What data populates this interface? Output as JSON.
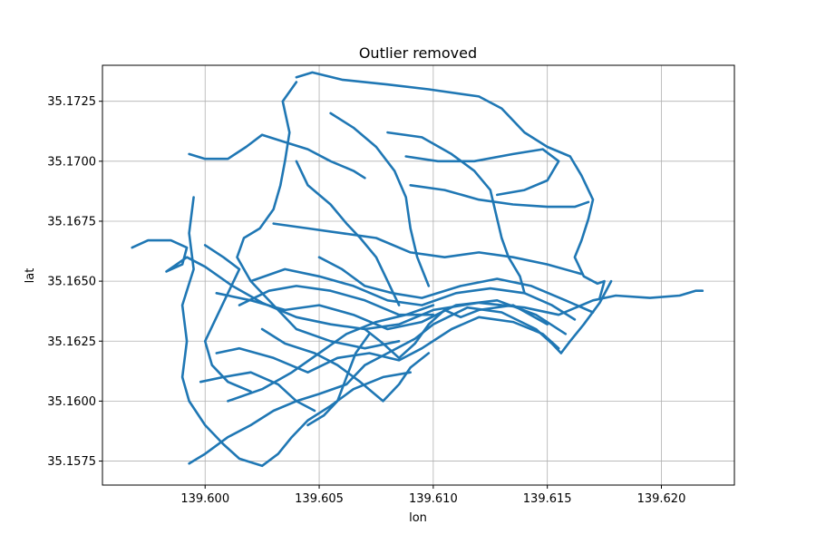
{
  "chart_data": {
    "type": "line",
    "title": "Outlier removed",
    "xlabel": "lon",
    "ylabel": "lat",
    "xlim": [
      139.5955,
      139.6232
    ],
    "ylim": [
      35.1565,
      35.174
    ],
    "grid": true,
    "series_color": "#1f77b4",
    "x_ticks": [
      {
        "value": 139.6,
        "label": "139.600"
      },
      {
        "value": 139.605,
        "label": "139.605"
      },
      {
        "value": 139.61,
        "label": "139.610"
      },
      {
        "value": 139.615,
        "label": "139.615"
      },
      {
        "value": 139.62,
        "label": "139.620"
      }
    ],
    "y_ticks": [
      {
        "value": 35.1575,
        "label": "35.1575"
      },
      {
        "value": 35.16,
        "label": "35.1600"
      },
      {
        "value": 35.1625,
        "label": "35.1625"
      },
      {
        "value": 35.165,
        "label": "35.1650"
      },
      {
        "value": 35.1675,
        "label": "35.1675"
      },
      {
        "value": 35.17,
        "label": "35.1700"
      },
      {
        "value": 35.1725,
        "label": "35.1725"
      }
    ],
    "tracks": [
      [
        [
          139.604,
          35.1735
        ],
        [
          139.6047,
          35.1737
        ],
        [
          139.606,
          35.1734
        ],
        [
          139.608,
          35.1732
        ],
        [
          139.6098,
          35.173
        ],
        [
          139.612,
          35.1727
        ],
        [
          139.613,
          35.1722
        ],
        [
          139.614,
          35.1712
        ],
        [
          139.615,
          35.1706
        ],
        [
          139.616,
          35.1702
        ],
        [
          139.6165,
          35.1694
        ],
        [
          139.617,
          35.1684
        ],
        [
          139.6168,
          35.1676
        ],
        [
          139.6165,
          35.1667
        ],
        [
          139.6162,
          35.166
        ],
        [
          139.6166,
          35.1652
        ],
        [
          139.6172,
          35.1649
        ],
        [
          139.6175,
          35.165
        ],
        [
          139.6173,
          35.1643
        ]
      ],
      [
        [
          139.604,
          35.1733
        ],
        [
          139.6034,
          35.1725
        ],
        [
          139.6037,
          35.1712
        ],
        [
          139.6035,
          35.17
        ],
        [
          139.6033,
          35.169
        ],
        [
          139.603,
          35.168
        ],
        [
          139.6024,
          35.1672
        ],
        [
          139.6017,
          35.1668
        ],
        [
          139.6014,
          35.166
        ],
        [
          139.602,
          35.165
        ],
        [
          139.603,
          35.164
        ],
        [
          139.604,
          35.163
        ],
        [
          139.6055,
          35.1625
        ],
        [
          139.607,
          35.1622
        ],
        [
          139.6085,
          35.1625
        ]
      ],
      [
        [
          139.5968,
          35.1664
        ],
        [
          139.5975,
          35.1667
        ],
        [
          139.5985,
          35.1667
        ],
        [
          139.5992,
          35.1664
        ],
        [
          139.599,
          35.1657
        ],
        [
          139.5983,
          35.1654
        ],
        [
          139.5992,
          35.166
        ],
        [
          139.6,
          35.1656
        ],
        [
          139.6012,
          35.1648
        ],
        [
          139.6025,
          35.1641
        ],
        [
          139.604,
          35.1635
        ],
        [
          139.6055,
          35.1632
        ],
        [
          139.607,
          35.163
        ],
        [
          139.6085,
          35.1632
        ],
        [
          139.61,
          35.1638
        ],
        [
          139.612,
          35.1641
        ],
        [
          139.614,
          35.1639
        ],
        [
          139.6155,
          35.1636
        ],
        [
          139.617,
          35.1642
        ],
        [
          139.618,
          35.1644
        ],
        [
          139.6195,
          35.1643
        ],
        [
          139.6208,
          35.1644
        ],
        [
          139.6215,
          35.1646
        ],
        [
          139.6218,
          35.1646
        ]
      ],
      [
        [
          139.5993,
          35.1703
        ],
        [
          139.6,
          35.1701
        ],
        [
          139.601,
          35.1701
        ],
        [
          139.6018,
          35.1706
        ],
        [
          139.6025,
          35.1711
        ],
        [
          139.6035,
          35.1708
        ],
        [
          139.6045,
          35.1705
        ],
        [
          139.6055,
          35.17
        ],
        [
          139.6065,
          35.1696
        ],
        [
          139.607,
          35.1693
        ]
      ],
      [
        [
          139.5995,
          35.1685
        ],
        [
          139.5993,
          35.167
        ],
        [
          139.5995,
          35.1655
        ],
        [
          139.599,
          35.164
        ],
        [
          139.5992,
          35.1625
        ],
        [
          139.599,
          35.161
        ],
        [
          139.5993,
          35.16
        ],
        [
          139.6,
          35.159
        ],
        [
          139.6008,
          35.1582
        ],
        [
          139.6015,
          35.1576
        ],
        [
          139.6025,
          35.1573
        ],
        [
          139.6032,
          35.1578
        ],
        [
          139.6038,
          35.1585
        ],
        [
          139.6045,
          35.1592
        ],
        [
          139.6055,
          35.1598
        ],
        [
          139.6065,
          35.1605
        ],
        [
          139.6078,
          35.161
        ],
        [
          139.609,
          35.1612
        ]
      ],
      [
        [
          139.5993,
          35.1574
        ],
        [
          139.6,
          35.1578
        ],
        [
          139.601,
          35.1585
        ],
        [
          139.602,
          35.159
        ],
        [
          139.603,
          35.1596
        ],
        [
          139.604,
          35.16
        ],
        [
          139.605,
          35.1603
        ],
        [
          139.6062,
          35.1607
        ],
        [
          139.607,
          35.1615
        ],
        [
          139.608,
          35.162
        ],
        [
          139.6092,
          35.1626
        ],
        [
          139.61,
          35.1632
        ],
        [
          139.6115,
          35.1639
        ],
        [
          139.613,
          35.1637
        ],
        [
          139.6145,
          35.163
        ],
        [
          139.6152,
          35.1624
        ],
        [
          139.6156,
          35.162
        ],
        [
          139.616,
          35.1625
        ],
        [
          139.6166,
          35.1632
        ],
        [
          139.6173,
          35.1641
        ],
        [
          139.6178,
          35.165
        ]
      ],
      [
        [
          139.6005,
          35.162
        ],
        [
          139.6015,
          35.1622
        ],
        [
          139.603,
          35.1618
        ],
        [
          139.6045,
          35.1612
        ],
        [
          139.6058,
          35.1618
        ],
        [
          139.6072,
          35.162
        ],
        [
          139.6085,
          35.1617
        ],
        [
          139.6095,
          35.1622
        ],
        [
          139.6108,
          35.163
        ],
        [
          139.612,
          35.1635
        ],
        [
          139.6135,
          35.1633
        ],
        [
          139.6148,
          35.1628
        ],
        [
          139.6155,
          35.1622
        ]
      ],
      [
        [
          139.602,
          35.165
        ],
        [
          139.6035,
          35.1655
        ],
        [
          139.605,
          35.1652
        ],
        [
          139.6065,
          35.1648
        ],
        [
          139.608,
          35.1642
        ],
        [
          139.6095,
          35.164
        ],
        [
          139.611,
          35.1645
        ],
        [
          139.6125,
          35.1647
        ],
        [
          139.614,
          35.1645
        ],
        [
          139.6152,
          35.164
        ],
        [
          139.6162,
          35.1634
        ]
      ],
      [
        [
          139.6005,
          35.1645
        ],
        [
          139.602,
          35.1642
        ],
        [
          139.6035,
          35.1638
        ],
        [
          139.605,
          35.164
        ],
        [
          139.6065,
          35.1636
        ],
        [
          139.608,
          35.163
        ],
        [
          139.6095,
          35.1633
        ],
        [
          139.611,
          35.164
        ],
        [
          139.6128,
          35.1642
        ],
        [
          139.6145,
          35.1636
        ],
        [
          139.6158,
          35.1628
        ]
      ],
      [
        [
          139.601,
          35.16
        ],
        [
          139.6025,
          35.1605
        ],
        [
          139.6038,
          35.1612
        ],
        [
          139.605,
          35.162
        ],
        [
          139.6062,
          35.1628
        ],
        [
          139.6075,
          35.1633
        ],
        [
          139.6088,
          35.1636
        ],
        [
          139.61,
          35.164
        ]
      ],
      [
        [
          139.604,
          35.17
        ],
        [
          139.6045,
          35.169
        ],
        [
          139.6055,
          35.1682
        ],
        [
          139.6062,
          35.1674
        ],
        [
          139.6068,
          35.1668
        ],
        [
          139.6075,
          35.166
        ],
        [
          139.608,
          35.165
        ],
        [
          139.6085,
          35.164
        ]
      ],
      [
        [
          139.6055,
          35.172
        ],
        [
          139.6065,
          35.1714
        ],
        [
          139.6075,
          35.1706
        ],
        [
          139.6083,
          35.1696
        ],
        [
          139.6088,
          35.1685
        ],
        [
          139.609,
          35.1672
        ],
        [
          139.6093,
          35.166
        ],
        [
          139.6098,
          35.1648
        ]
      ],
      [
        [
          139.608,
          35.1712
        ],
        [
          139.6095,
          35.171
        ],
        [
          139.6108,
          35.1703
        ],
        [
          139.6118,
          35.1696
        ],
        [
          139.6125,
          35.1688
        ],
        [
          139.6128,
          35.1676
        ],
        [
          139.613,
          35.1668
        ],
        [
          139.6133,
          35.166
        ],
        [
          139.6138,
          35.1652
        ],
        [
          139.614,
          35.1645
        ]
      ],
      [
        [
          139.6088,
          35.1702
        ],
        [
          139.6102,
          35.17
        ],
        [
          139.6118,
          35.17
        ],
        [
          139.6135,
          35.1703
        ],
        [
          139.6148,
          35.1705
        ],
        [
          139.6155,
          35.17
        ],
        [
          139.615,
          35.1692
        ],
        [
          139.614,
          35.1688
        ],
        [
          139.6128,
          35.1686
        ]
      ],
      [
        [
          139.609,
          35.169
        ],
        [
          139.6105,
          35.1688
        ],
        [
          139.612,
          35.1684
        ],
        [
          139.6135,
          35.1682
        ],
        [
          139.615,
          35.1681
        ],
        [
          139.6162,
          35.1681
        ],
        [
          139.6168,
          35.1683
        ]
      ],
      [
        [
          139.603,
          35.1674
        ],
        [
          139.6045,
          35.1672
        ],
        [
          139.606,
          35.167
        ],
        [
          139.6075,
          35.1668
        ],
        [
          139.609,
          35.1662
        ],
        [
          139.6105,
          35.166
        ],
        [
          139.612,
          35.1662
        ],
        [
          139.6135,
          35.166
        ],
        [
          139.615,
          35.1657
        ],
        [
          139.6165,
          35.1653
        ]
      ],
      [
        [
          139.6,
          35.1665
        ],
        [
          139.6008,
          35.166
        ],
        [
          139.6015,
          35.1655
        ],
        [
          139.601,
          35.1645
        ],
        [
          139.6005,
          35.1635
        ],
        [
          139.6,
          35.1625
        ],
        [
          139.6003,
          35.1615
        ],
        [
          139.601,
          35.1608
        ],
        [
          139.602,
          35.1604
        ]
      ],
      [
        [
          139.6025,
          35.163
        ],
        [
          139.6035,
          35.1624
        ],
        [
          139.6048,
          35.162
        ],
        [
          139.6058,
          35.1615
        ],
        [
          139.6068,
          35.1608
        ],
        [
          139.6078,
          35.16
        ],
        [
          139.6085,
          35.1607
        ],
        [
          139.609,
          35.1614
        ],
        [
          139.6098,
          35.162
        ]
      ],
      [
        [
          139.6045,
          35.159
        ],
        [
          139.6052,
          35.1594
        ],
        [
          139.6058,
          35.16
        ],
        [
          139.6062,
          35.161
        ],
        [
          139.6066,
          35.162
        ],
        [
          139.6072,
          35.1628
        ]
      ],
      [
        [
          139.6015,
          35.164
        ],
        [
          139.6028,
          35.1646
        ],
        [
          139.604,
          35.1648
        ],
        [
          139.6055,
          35.1646
        ],
        [
          139.607,
          35.1642
        ],
        [
          139.6085,
          35.1636
        ],
        [
          139.61,
          35.1636
        ]
      ],
      [
        [
          139.605,
          35.166
        ],
        [
          139.606,
          35.1655
        ],
        [
          139.607,
          35.1648
        ],
        [
          139.6082,
          35.1645
        ],
        [
          139.6095,
          35.1643
        ],
        [
          139.6112,
          35.1648
        ],
        [
          139.6128,
          35.1651
        ],
        [
          139.6143,
          35.1648
        ],
        [
          139.6158,
          35.1642
        ],
        [
          139.617,
          35.1637
        ]
      ],
      [
        [
          139.5998,
          35.1608
        ],
        [
          139.6008,
          35.161
        ],
        [
          139.602,
          35.1612
        ],
        [
          139.6032,
          35.1607
        ],
        [
          139.604,
          35.16
        ],
        [
          139.6048,
          35.1596
        ]
      ],
      [
        [
          139.607,
          35.163
        ],
        [
          139.6078,
          35.1624
        ],
        [
          139.6085,
          35.1618
        ],
        [
          139.6092,
          35.1624
        ],
        [
          139.6098,
          35.1632
        ],
        [
          139.6105,
          35.1638
        ],
        [
          139.6112,
          35.1635
        ],
        [
          139.612,
          35.1638
        ],
        [
          139.6135,
          35.164
        ],
        [
          139.615,
          35.1632
        ]
      ]
    ]
  }
}
